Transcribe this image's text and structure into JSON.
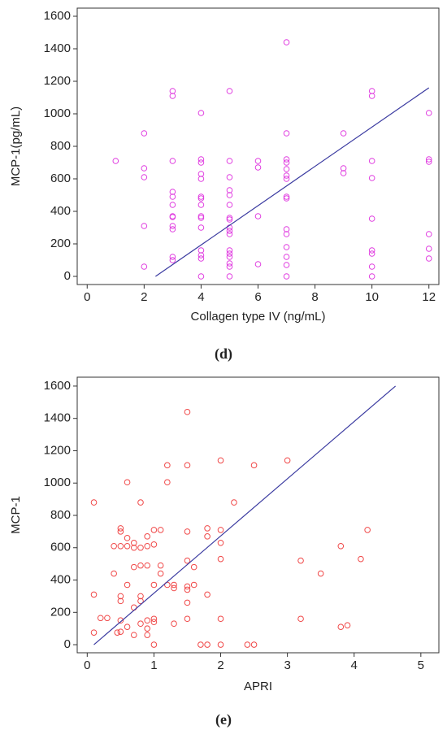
{
  "chart_data": [
    {
      "type": "scatter",
      "caption": "(d)",
      "x_label": "Collagen type IV (ng/mL)",
      "y_label": "MCP-1(pg/mL)",
      "color": "#e03ee0",
      "xlim": [
        -0.35,
        12.35
      ],
      "ylim": [
        -50,
        1650
      ],
      "xticks": [
        0,
        2,
        4,
        6,
        8,
        10,
        12
      ],
      "yticks": [
        0,
        200,
        400,
        600,
        800,
        1000,
        1200,
        1400,
        1600
      ],
      "x": [
        1,
        2,
        2,
        2,
        2,
        2,
        3,
        3,
        3,
        3,
        3,
        3,
        3,
        3,
        3,
        3,
        3,
        3,
        4,
        4,
        4,
        4,
        4,
        4,
        4,
        4,
        4,
        4,
        4,
        4,
        4,
        4,
        4,
        5,
        5,
        5,
        5,
        5,
        5,
        5,
        5,
        5,
        5,
        5,
        5,
        5,
        5,
        5,
        5,
        5,
        6,
        6,
        6,
        6,
        7,
        7,
        7,
        7,
        7,
        7,
        7,
        7,
        7,
        7,
        7,
        7,
        7,
        7,
        7,
        9,
        9,
        9,
        10,
        10,
        10,
        10,
        10,
        10,
        10,
        10,
        10,
        12,
        12,
        12,
        12,
        12,
        12
      ],
      "values": [
        710,
        880,
        665,
        610,
        310,
        60,
        1140,
        1110,
        710,
        520,
        490,
        440,
        370,
        365,
        310,
        290,
        120,
        100,
        1005,
        720,
        700,
        630,
        600,
        490,
        480,
        440,
        370,
        360,
        300,
        160,
        130,
        110,
        0,
        1140,
        710,
        610,
        530,
        500,
        440,
        360,
        350,
        300,
        280,
        260,
        160,
        140,
        120,
        80,
        60,
        0,
        710,
        670,
        370,
        75,
        1440,
        880,
        720,
        700,
        660,
        620,
        600,
        490,
        480,
        290,
        260,
        180,
        120,
        70,
        0,
        880,
        665,
        635,
        1140,
        1110,
        710,
        605,
        355,
        160,
        140,
        60,
        0,
        1005,
        720,
        705,
        260,
        170,
        110
      ],
      "fit": {
        "color": "#3a3aa0",
        "x": [
          2.4,
          12
        ],
        "values": [
          0,
          1160
        ]
      }
    },
    {
      "type": "scatter",
      "caption": "(e)",
      "x_label": "APRI",
      "y_label": "MCP-1",
      "color": "#f04848",
      "xlim": [
        -0.15,
        5.27
      ],
      "ylim": [
        -50,
        1655
      ],
      "xticks": [
        0,
        1,
        2,
        3,
        4,
        5
      ],
      "yticks": [
        0,
        200,
        400,
        600,
        800,
        1000,
        1200,
        1400,
        1600
      ],
      "x": [
        0.1,
        0.1,
        0.1,
        0.2,
        0.3,
        0.4,
        0.4,
        0.45,
        0.5,
        0.5,
        0.5,
        0.5,
        0.5,
        0.5,
        0.5,
        0.6,
        0.6,
        0.6,
        0.6,
        0.6,
        0.7,
        0.7,
        0.7,
        0.7,
        0.7,
        0.8,
        0.8,
        0.8,
        0.8,
        0.8,
        0.8,
        0.9,
        0.9,
        0.9,
        0.9,
        0.9,
        0.9,
        1.0,
        1.0,
        1.0,
        1.0,
        1.0,
        1.0,
        1.1,
        1.1,
        1.1,
        1.2,
        1.2,
        1.2,
        1.3,
        1.3,
        1.3,
        1.5,
        1.5,
        1.5,
        1.5,
        1.5,
        1.5,
        1.5,
        1.5,
        1.6,
        1.6,
        1.7,
        1.8,
        1.8,
        1.8,
        1.8,
        2.0,
        2.0,
        2.0,
        2.0,
        2.0,
        2.0,
        2.2,
        2.4,
        2.5,
        2.5,
        3.0,
        3.2,
        3.2,
        3.5,
        3.8,
        3.8,
        3.9,
        4.1,
        4.2
      ],
      "values": [
        880,
        310,
        75,
        165,
        165,
        610,
        440,
        75,
        720,
        700,
        610,
        300,
        270,
        150,
        80,
        1005,
        660,
        610,
        370,
        110,
        630,
        600,
        480,
        230,
        60,
        880,
        600,
        490,
        300,
        270,
        130,
        670,
        610,
        490,
        150,
        100,
        60,
        710,
        620,
        370,
        160,
        140,
        0,
        710,
        490,
        440,
        1110,
        1005,
        370,
        370,
        350,
        130,
        1440,
        1110,
        700,
        520,
        360,
        340,
        260,
        160,
        480,
        370,
        0,
        720,
        670,
        310,
        0,
        1140,
        710,
        630,
        530,
        160,
        0,
        880,
        0,
        1110,
        0,
        1140,
        520,
        160,
        440,
        610,
        110,
        120,
        530,
        710
      ],
      "fit": {
        "color": "#3a3aa0",
        "x": [
          0.1,
          4.62
        ],
        "values": [
          0,
          1600
        ]
      }
    }
  ]
}
